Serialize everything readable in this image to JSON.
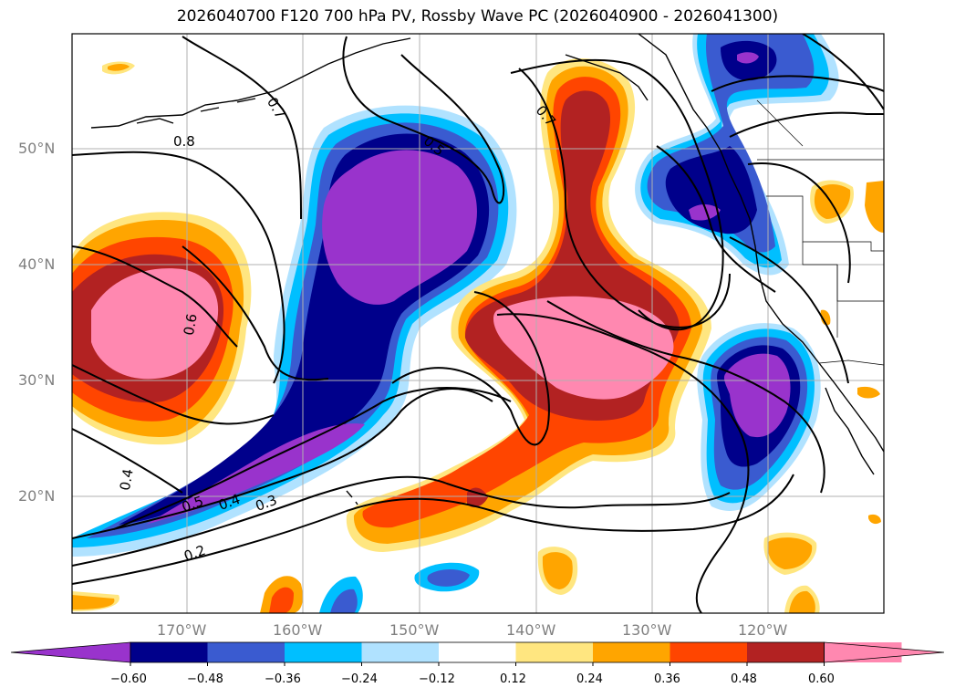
{
  "title": "2026040700 F120 700 hPa PV, Rossby Wave PC (2026040900 - 2026041300)",
  "lat_labels": [
    "50°N",
    "40°N",
    "30°N",
    "20°N"
  ],
  "lon_labels": [
    "170°W",
    "160°W",
    "150°W",
    "140°W",
    "130°W",
    "120°W"
  ],
  "colorbar": {
    "tick_labels": [
      "−0.60",
      "−0.48",
      "−0.36",
      "−0.24",
      "−0.12",
      "0.12",
      "0.24",
      "0.36",
      "0.48",
      "0.60"
    ],
    "colors": [
      "#9933cc",
      "#00008b",
      "#3a5bd0",
      "#00bfff",
      "#b0e2ff",
      "#ffffff",
      "#ffe680",
      "#ffa500",
      "#ff4500",
      "#b22222",
      "#ff88b0",
      "#ff88b0"
    ]
  },
  "contour_labels": [
    "0.8",
    "0.7",
    "0.5",
    "0.7",
    "0.6",
    "0.4",
    "0.5",
    "0.4",
    "0.3",
    "0.2"
  ],
  "colors": {
    "purple": "#9933cc",
    "navy": "#00008b",
    "blue": "#3a5bd0",
    "cyan": "#00bfff",
    "lightblue": "#b0e2ff",
    "yellow": "#ffe680",
    "orange": "#ffa500",
    "redorange": "#ff4500",
    "darkred": "#b22222",
    "pink": "#ff88b0"
  }
}
